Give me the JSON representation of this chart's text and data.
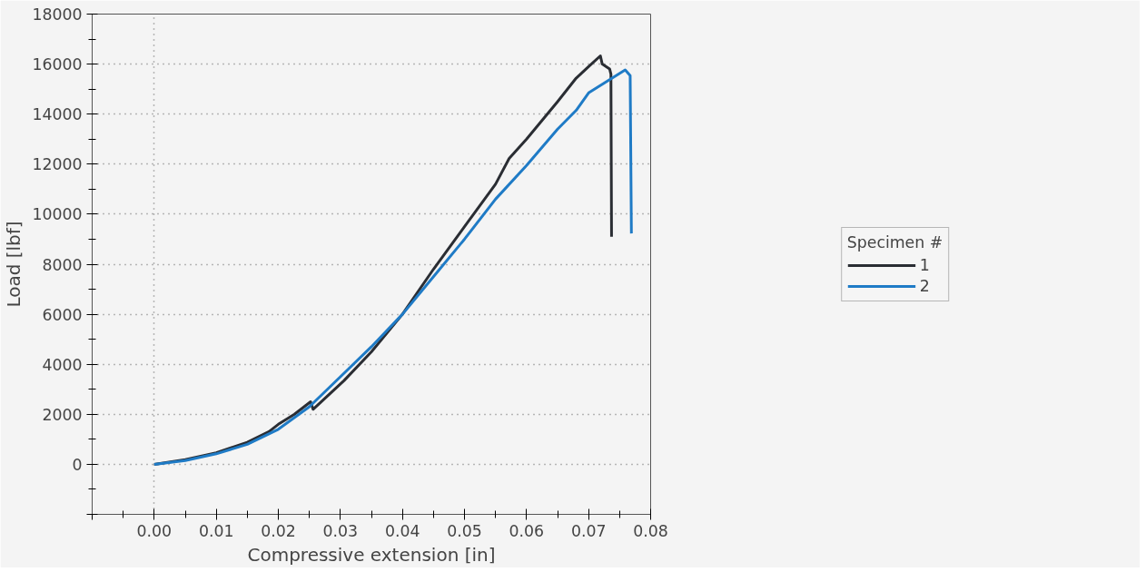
{
  "chart_data": {
    "type": "line",
    "xlabel": "Compressive extension [in]",
    "ylabel": "Load [lbf]",
    "legend_title": "Specimen #",
    "legend": "right",
    "grid": true,
    "line_style": "solid",
    "marker": "none",
    "xlim": [
      -0.01,
      0.08
    ],
    "xticks": [
      {
        "value": -0.01,
        "label": null
      },
      {
        "value": 0,
        "label": "0.00"
      },
      0.01,
      0.02,
      0.03,
      0.04,
      0.05,
      0.06,
      0.07,
      0.08
    ],
    "ylim": [
      -2000,
      18000
    ],
    "yticks": [
      {
        "value": -2000,
        "label": null
      },
      0,
      2000,
      4000,
      6000,
      8000,
      10000,
      12000,
      14000,
      16000,
      18000
    ],
    "series": [
      {
        "name": "1",
        "color": "#2a2d33",
        "x": [
          0,
          0.005,
          0.01,
          0.015,
          0.0185,
          0.02,
          0.0226,
          0.0252,
          0.0256,
          0.0306,
          0.035,
          0.04,
          0.045,
          0.05,
          0.055,
          0.0572,
          0.06,
          0.065,
          0.068,
          0.07,
          0.0719,
          0.0722,
          0.0734,
          0.0736,
          0.0737
        ],
        "values": [
          0,
          190,
          460,
          880,
          1310,
          1600,
          2000,
          2500,
          2200,
          3350,
          4500,
          6000,
          7800,
          9500,
          11200,
          12230,
          13000,
          14500,
          15440,
          15900,
          16330,
          16000,
          15800,
          15600,
          9100
        ]
      },
      {
        "name": "2",
        "color": "#1f7bc6",
        "x": [
          0,
          0.005,
          0.01,
          0.015,
          0.02,
          0.025,
          0.03,
          0.035,
          0.04,
          0.045,
          0.05,
          0.055,
          0.06,
          0.065,
          0.068,
          0.07,
          0.0759,
          0.0767,
          0.0769
        ],
        "values": [
          0,
          150,
          420,
          800,
          1400,
          2300,
          3500,
          4700,
          6000,
          7500,
          9000,
          10600,
          11950,
          13400,
          14150,
          14850,
          15770,
          15540,
          9230
        ]
      }
    ]
  }
}
